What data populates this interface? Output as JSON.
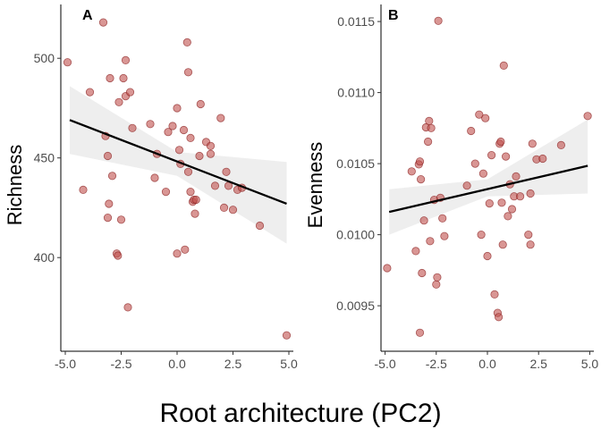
{
  "shared_xlabel": "Root architecture (PC2)",
  "colors": {
    "point_fill": "#c0504d",
    "point_stroke": "#8b2323",
    "line": "#000000",
    "band": "#d9d9d9"
  },
  "chart_data": [
    {
      "type": "scatter",
      "panel_label": "A",
      "ylabel": "Richness",
      "xlim": [
        -5.2,
        5.2
      ],
      "ylim": [
        353,
        527
      ],
      "xticks": [
        -5,
        -2.5,
        0,
        2.5,
        5
      ],
      "xtick_labels": [
        "-5.0",
        "-2.5",
        "0.0",
        "2.5",
        "5.0"
      ],
      "yticks": [
        400,
        450,
        500
      ],
      "ytick_labels": [
        "400",
        "450",
        "500"
      ],
      "points": [
        [
          -4.9,
          498
        ],
        [
          -4.2,
          434
        ],
        [
          -3.9,
          483
        ],
        [
          -3.3,
          518
        ],
        [
          -3.2,
          461
        ],
        [
          -3.1,
          451
        ],
        [
          -3.05,
          427
        ],
        [
          -3.1,
          420
        ],
        [
          -3.0,
          490
        ],
        [
          -2.9,
          441
        ],
        [
          -2.7,
          402
        ],
        [
          -2.65,
          401
        ],
        [
          -2.6,
          478
        ],
        [
          -2.5,
          419
        ],
        [
          -2.4,
          490
        ],
        [
          -2.3,
          499
        ],
        [
          -2.3,
          481
        ],
        [
          -2.2,
          375
        ],
        [
          -2.1,
          483
        ],
        [
          -2.0,
          465
        ],
        [
          -1.2,
          467
        ],
        [
          -1.0,
          440
        ],
        [
          -0.9,
          452
        ],
        [
          -0.5,
          433
        ],
        [
          -0.4,
          463
        ],
        [
          -0.2,
          466
        ],
        [
          0.0,
          475
        ],
        [
          0.0,
          402
        ],
        [
          0.1,
          454
        ],
        [
          0.15,
          447
        ],
        [
          0.3,
          464
        ],
        [
          0.35,
          404
        ],
        [
          0.45,
          508
        ],
        [
          0.5,
          493
        ],
        [
          0.5,
          443
        ],
        [
          0.6,
          460
        ],
        [
          0.6,
          433
        ],
        [
          0.7,
          428
        ],
        [
          0.75,
          429
        ],
        [
          0.8,
          422
        ],
        [
          0.85,
          429
        ],
        [
          1.0,
          451
        ],
        [
          1.05,
          477
        ],
        [
          1.3,
          458
        ],
        [
          1.5,
          456
        ],
        [
          1.5,
          452
        ],
        [
          1.7,
          436
        ],
        [
          1.95,
          470
        ],
        [
          2.1,
          425
        ],
        [
          2.2,
          443
        ],
        [
          2.3,
          436
        ],
        [
          2.5,
          424
        ],
        [
          2.7,
          434
        ],
        [
          2.9,
          435
        ],
        [
          3.7,
          416
        ],
        [
          4.9,
          361
        ]
      ],
      "fit": {
        "x": [
          -4.8,
          4.9
        ],
        "y": [
          469,
          427
        ]
      },
      "ci_band": {
        "x": [
          -4.8,
          0.0,
          4.9
        ],
        "lower": [
          452,
          441,
          407
        ],
        "upper": [
          486,
          453,
          448
        ]
      }
    },
    {
      "type": "scatter",
      "panel_label": "B",
      "ylabel": "Evenness",
      "xlim": [
        -5.2,
        5.2
      ],
      "ylim": [
        0.00918,
        0.01162
      ],
      "xticks": [
        -5,
        -2.5,
        0,
        2.5,
        5
      ],
      "xtick_labels": [
        "-5.0",
        "-2.5",
        "0.0",
        "2.5",
        "5.0"
      ],
      "yticks": [
        0.0095,
        0.01,
        0.0105,
        0.011,
        0.0115
      ],
      "ytick_labels": [
        "0.0095",
        "0.0100",
        "0.0105",
        "0.0110",
        "0.0115"
      ],
      "points": [
        [
          -4.9,
          0.009765
        ],
        [
          -3.7,
          0.010445
        ],
        [
          -3.5,
          0.009885
        ],
        [
          -3.35,
          0.010495
        ],
        [
          -3.3,
          0.010515
        ],
        [
          -3.25,
          0.01039
        ],
        [
          -3.3,
          0.00931
        ],
        [
          -3.2,
          0.00973
        ],
        [
          -3.1,
          0.0101
        ],
        [
          -3.0,
          0.010755
        ],
        [
          -2.9,
          0.010655
        ],
        [
          -2.85,
          0.0108
        ],
        [
          -2.8,
          0.009955
        ],
        [
          -2.75,
          0.01075
        ],
        [
          -2.6,
          0.010245
        ],
        [
          -2.5,
          0.00965
        ],
        [
          -2.45,
          0.0097
        ],
        [
          -2.4,
          0.011505
        ],
        [
          -2.3,
          0.01026
        ],
        [
          -2.2,
          0.010115
        ],
        [
          -2.1,
          0.00999
        ],
        [
          -1.0,
          0.010345
        ],
        [
          -0.8,
          0.01073
        ],
        [
          -0.6,
          0.0105
        ],
        [
          -0.4,
          0.010845
        ],
        [
          -0.3,
          0.01
        ],
        [
          -0.2,
          0.01043
        ],
        [
          -0.1,
          0.01082
        ],
        [
          0.0,
          0.00985
        ],
        [
          0.1,
          0.01022
        ],
        [
          0.2,
          0.01056
        ],
        [
          0.35,
          0.00958
        ],
        [
          0.5,
          0.00945
        ],
        [
          0.55,
          0.00942
        ],
        [
          0.6,
          0.01064
        ],
        [
          0.65,
          0.010655
        ],
        [
          0.7,
          0.010225
        ],
        [
          0.75,
          0.00993
        ],
        [
          0.8,
          0.01119
        ],
        [
          0.9,
          0.01055
        ],
        [
          1.0,
          0.01013
        ],
        [
          1.1,
          0.010355
        ],
        [
          1.2,
          0.01018
        ],
        [
          1.3,
          0.01027
        ],
        [
          1.4,
          0.01041
        ],
        [
          1.6,
          0.01027
        ],
        [
          2.0,
          0.01
        ],
        [
          2.1,
          0.00993
        ],
        [
          2.1,
          0.01029
        ],
        [
          2.2,
          0.01064
        ],
        [
          2.4,
          0.01053
        ],
        [
          2.7,
          0.010535
        ],
        [
          3.6,
          0.01063
        ],
        [
          4.9,
          0.010835
        ]
      ],
      "fit": {
        "x": [
          -4.8,
          4.9
        ],
        "y": [
          0.01016,
          0.010485
        ]
      },
      "ci_band": {
        "x": [
          -4.8,
          0.0,
          4.9
        ],
        "lower": [
          0.01,
          0.01027,
          0.01029
        ],
        "upper": [
          0.01032,
          0.01039,
          0.01081
        ]
      }
    }
  ]
}
